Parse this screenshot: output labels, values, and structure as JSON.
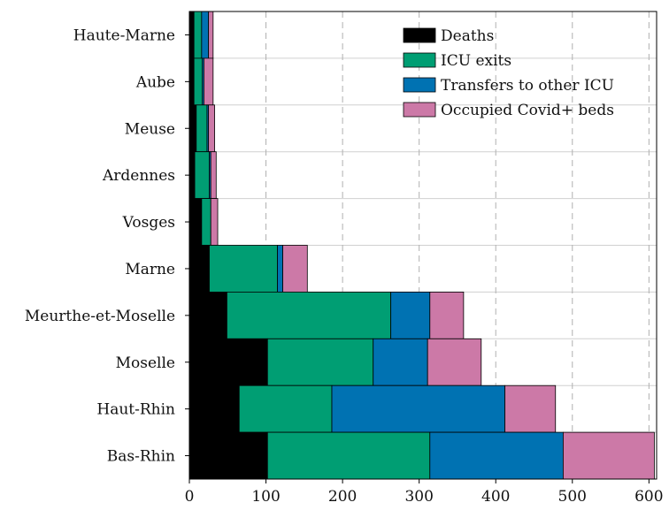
{
  "chart_data": {
    "type": "bar",
    "orientation": "horizontal",
    "stacked": true,
    "title": "",
    "xlabel": "",
    "ylabel": "",
    "xlim": [
      0,
      610
    ],
    "x_ticks": [
      0,
      100,
      200,
      300,
      400,
      500,
      600
    ],
    "grid": true,
    "legend_position": "top-right",
    "categories": [
      "Haute-Marne",
      "Aube",
      "Meuse",
      "Ardennes",
      "Vosges",
      "Marne",
      "Meurthe-et-Moselle",
      "Moselle",
      "Haut-Rhin",
      "Bas-Rhin"
    ],
    "series": [
      {
        "name": "Deaths",
        "color": "#000000",
        "values": [
          6,
          6,
          9,
          7,
          16,
          26,
          49,
          102,
          65,
          102
        ]
      },
      {
        "name": "ICU exits",
        "color": "#009e73",
        "values": [
          10,
          11,
          14,
          19,
          12,
          89,
          214,
          138,
          121,
          212
        ]
      },
      {
        "name": "Transfers to other ICU",
        "color": "#0072b2",
        "values": [
          9,
          2,
          2,
          2,
          0,
          7,
          51,
          71,
          226,
          174
        ]
      },
      {
        "name": "Occupied Covid+ beds",
        "color": "#cc79a7",
        "values": [
          6,
          12,
          8,
          7,
          9,
          32,
          44,
          70,
          66,
          119
        ]
      }
    ]
  }
}
